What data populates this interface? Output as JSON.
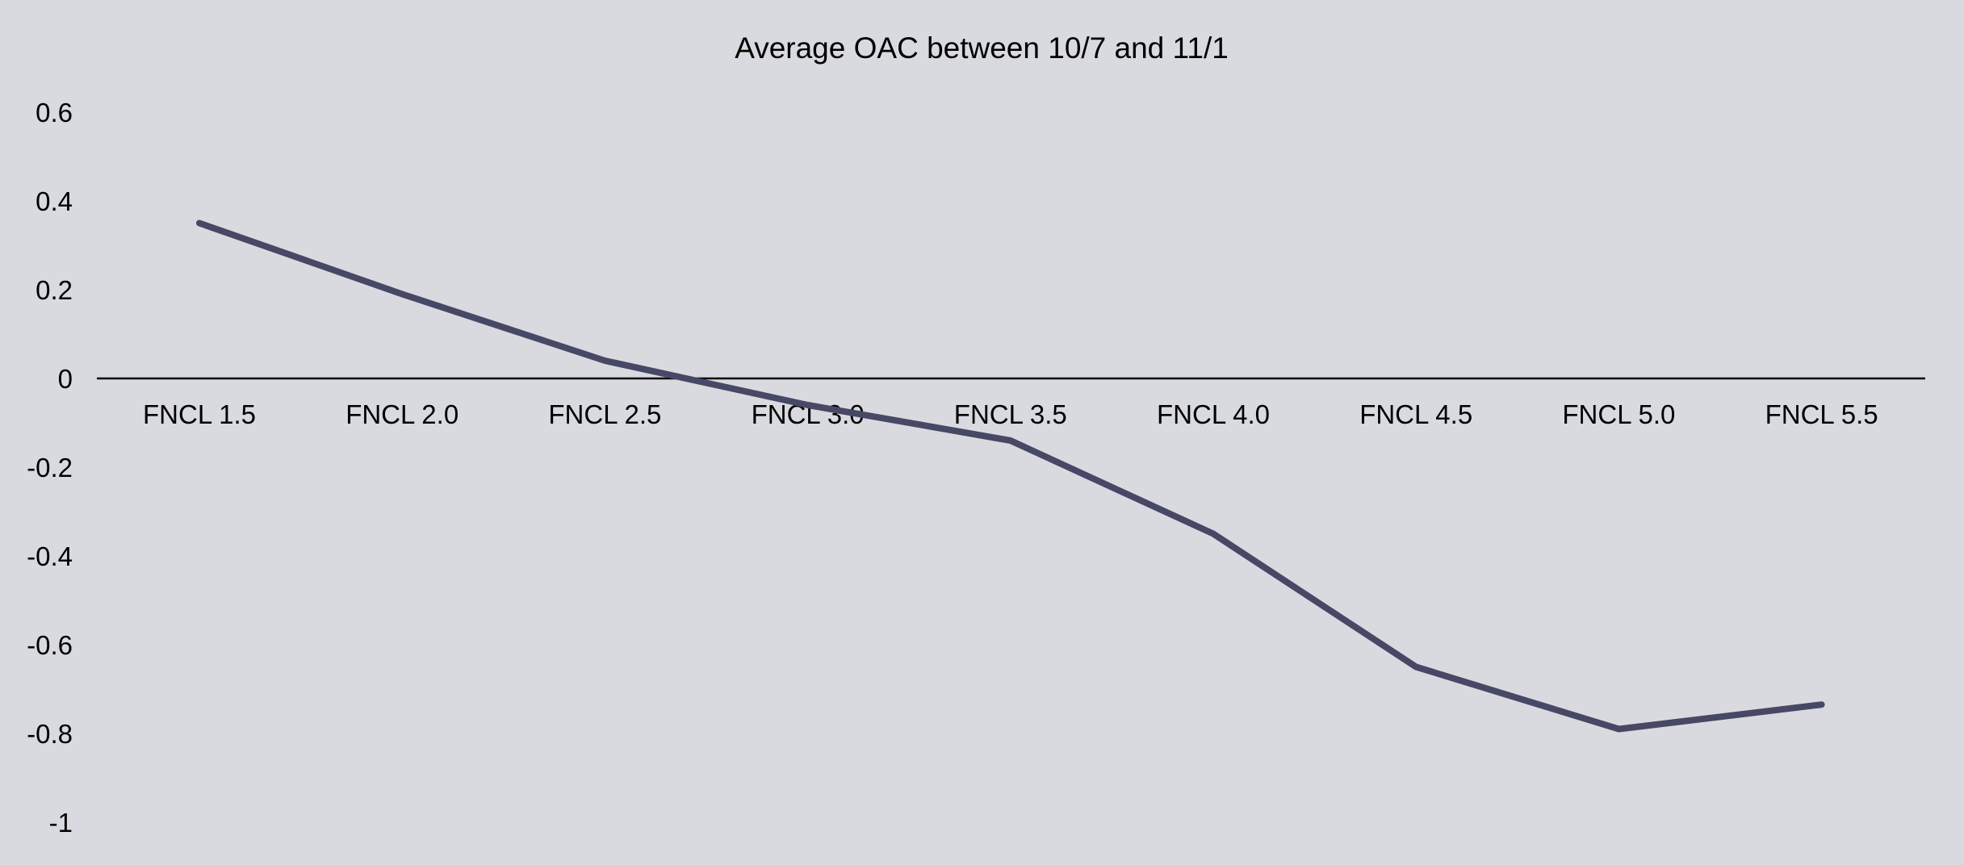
{
  "chart_data": {
    "type": "line",
    "title": "Average OAC between 10/7 and 11/1",
    "xlabel": "",
    "ylabel": "",
    "categories": [
      "FNCL 1.5",
      "FNCL 2.0",
      "FNCL 2.5",
      "FNCL 3.0",
      "FNCL 3.5",
      "FNCL 4.0",
      "FNCL 4.5",
      "FNCL 5.0",
      "FNCL 5.5"
    ],
    "series": [
      {
        "values": [
          0.35,
          0.19,
          0.04,
          -0.06,
          -0.14,
          -0.35,
          -0.65,
          -0.79,
          -0.735
        ],
        "color": "#464866"
      }
    ],
    "ylim": [
      -1,
      0.6
    ],
    "yticks": [
      0.6,
      0.4,
      0.2,
      0,
      -0.2,
      -0.4,
      -0.6,
      -0.8,
      -1
    ],
    "ytick_labels": [
      "0.6",
      "0.4",
      "0.2",
      "0",
      "-0.2",
      "-0.4",
      "-0.6",
      "-0.8",
      "-1"
    ],
    "grid": false,
    "legend": "none",
    "colors": {
      "background": "#d9dadf",
      "axis": "#000000",
      "text": "#000000"
    }
  }
}
